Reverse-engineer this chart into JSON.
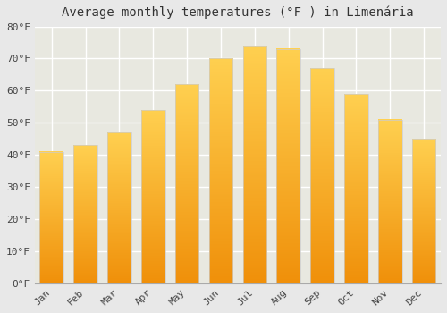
{
  "title": "Average monthly temperatures (°F ) in Limenária",
  "months": [
    "Jan",
    "Feb",
    "Mar",
    "Apr",
    "May",
    "Jun",
    "Jul",
    "Aug",
    "Sep",
    "Oct",
    "Nov",
    "Dec"
  ],
  "values": [
    41,
    43,
    47,
    54,
    62,
    70,
    74,
    73,
    67,
    59,
    51,
    45
  ],
  "bar_color_top": "#FFD050",
  "bar_color_bottom": "#F0900A",
  "bar_edge_color": "#CCCCCC",
  "ylim": [
    0,
    80
  ],
  "yticks": [
    0,
    10,
    20,
    30,
    40,
    50,
    60,
    70,
    80
  ],
  "ytick_labels": [
    "0°F",
    "10°F",
    "20°F",
    "30°F",
    "40°F",
    "50°F",
    "60°F",
    "70°F",
    "80°F"
  ],
  "background_color": "#e8e8e8",
  "plot_bg_color": "#e8e8e0",
  "grid_color": "#ffffff",
  "title_fontsize": 10,
  "tick_fontsize": 8,
  "bar_width": 0.7
}
